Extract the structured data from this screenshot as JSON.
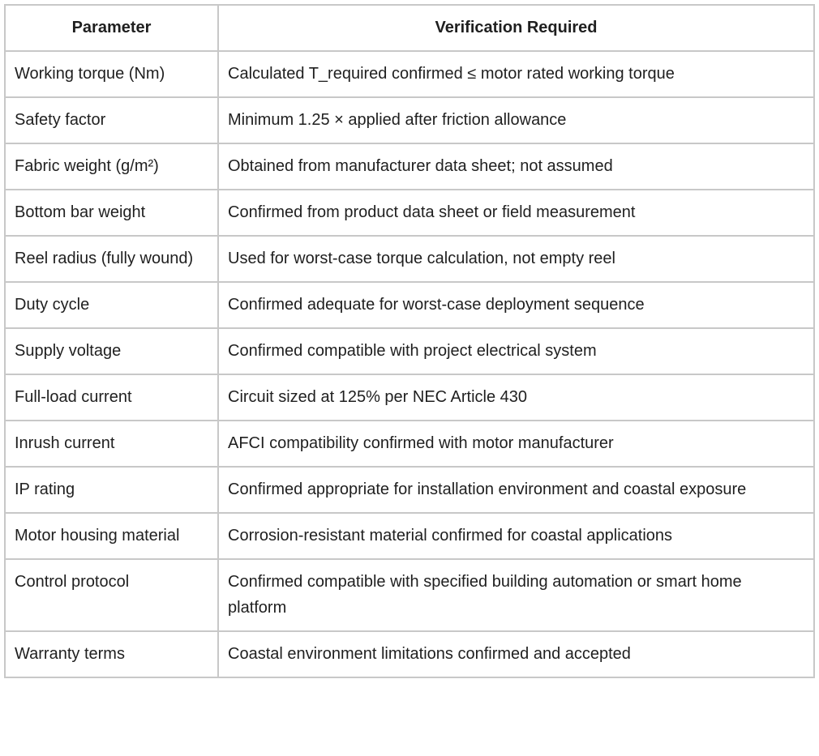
{
  "table": {
    "headers": [
      "Parameter",
      "Verification Required"
    ],
    "rows": [
      [
        "Working torque (Nm)",
        "Calculated T_required confirmed ≤ motor rated working torque"
      ],
      [
        "Safety factor",
        "Minimum 1.25 × applied after friction allowance"
      ],
      [
        "Fabric weight (g/m²)",
        "Obtained from manufacturer data sheet; not assumed"
      ],
      [
        "Bottom bar weight",
        "Confirmed from product data sheet or field measurement"
      ],
      [
        "Reel radius (fully wound)",
        "Used for worst-case torque calculation, not empty reel"
      ],
      [
        "Duty cycle",
        "Confirmed adequate for worst-case deployment sequence"
      ],
      [
        "Supply voltage",
        "Confirmed compatible with project electrical system"
      ],
      [
        "Full-load current",
        "Circuit sized at 125% per NEC Article 430"
      ],
      [
        "Inrush current",
        "AFCI compatibility confirmed with motor manufacturer"
      ],
      [
        "IP rating",
        "Confirmed appropriate for installation environment and coastal exposure"
      ],
      [
        "Motor housing material",
        "Corrosion-resistant material confirmed for coastal applications"
      ],
      [
        "Control protocol",
        "Confirmed compatible with specified building automation or smart home platform"
      ],
      [
        "Warranty terms",
        "Coastal environment limitations confirmed and accepted"
      ]
    ]
  }
}
